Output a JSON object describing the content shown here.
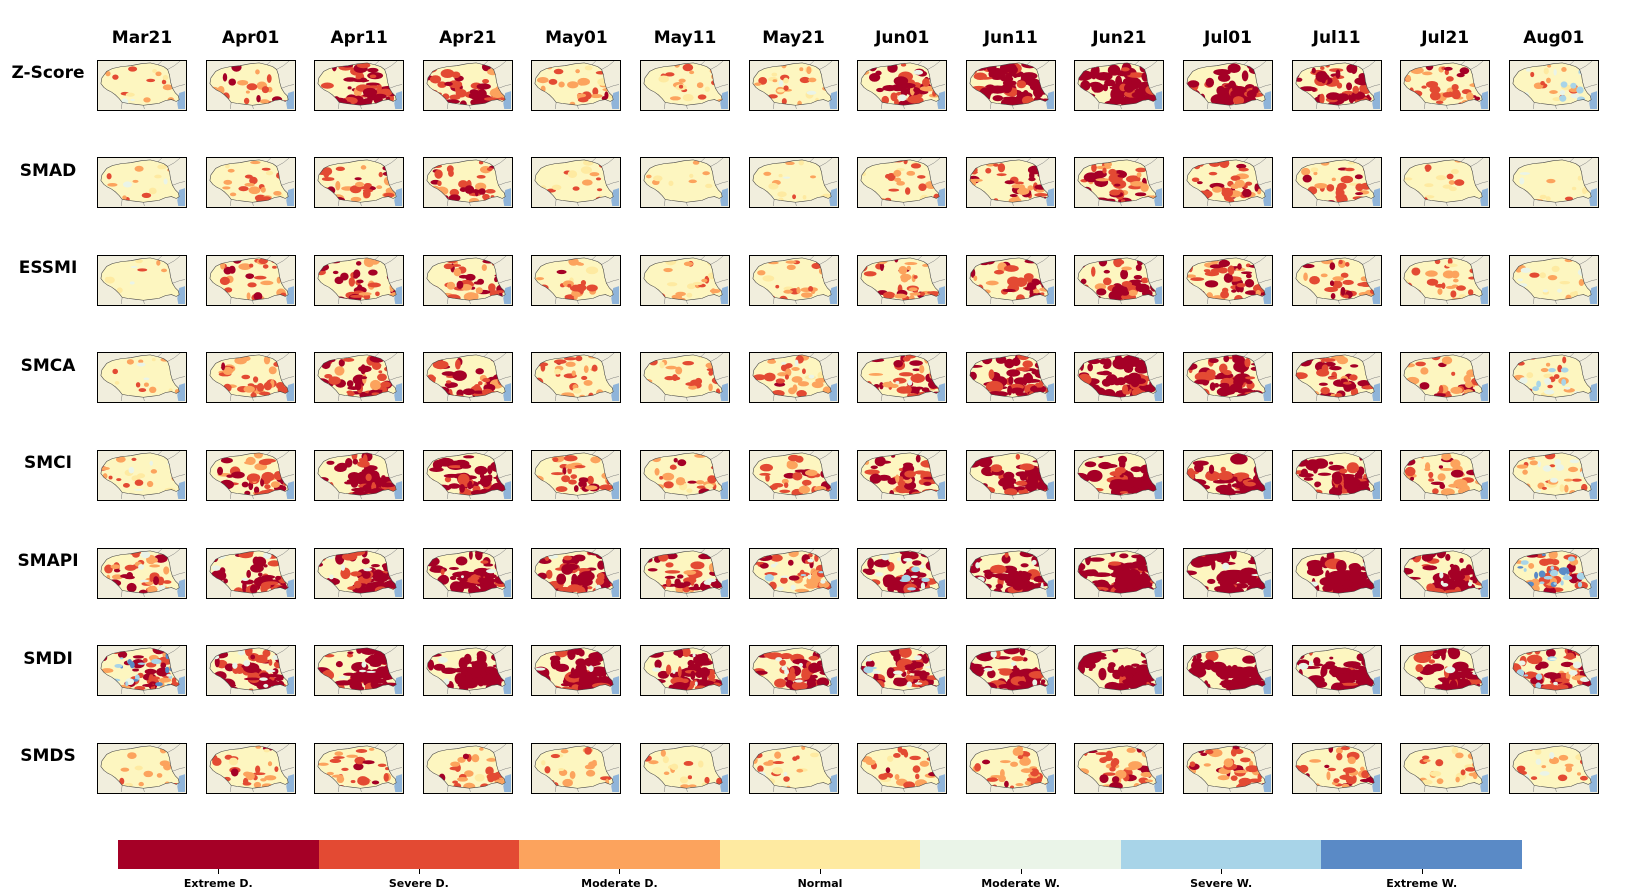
{
  "columns": [
    "Mar21",
    "Apr01",
    "Apr11",
    "Apr21",
    "May01",
    "May11",
    "May21",
    "Jun01",
    "Jun11",
    "Jun21",
    "Jul01",
    "Jul11",
    "Jul21",
    "Aug01"
  ],
  "rows": [
    "Z-Score",
    "SMAD",
    "ESSMI",
    "SMCA",
    "SMCI",
    "SMAPI",
    "SMDI",
    "SMDS"
  ],
  "legend": {
    "labels": [
      "Extreme D.",
      "Severe D.",
      "Moderate D.",
      "Normal",
      "Moderate W.",
      "Severe W.",
      "Extreme W."
    ],
    "colors": [
      "#a50026",
      "#e34a33",
      "#fca35d",
      "#feeaa1",
      "#eaf4e8",
      "#a8d4e8",
      "#5a8ac6"
    ]
  },
  "map_colors": {
    "land_outside": "#f1eedd",
    "base": "#fdf6c0",
    "sea": "#8fb4d9"
  },
  "drought_levels": [
    [
      0.05,
      0.3,
      0.6,
      0.55,
      0.25,
      0.15,
      0.2,
      0.55,
      0.75,
      0.85,
      0.75,
      0.6,
      0.35,
      0.15
    ],
    [
      0.05,
      0.2,
      0.4,
      0.4,
      0.15,
      0.05,
      0.05,
      0.25,
      0.45,
      0.5,
      0.45,
      0.3,
      0.1,
      0.05
    ],
    [
      0.05,
      0.3,
      0.4,
      0.45,
      0.25,
      0.15,
      0.2,
      0.35,
      0.5,
      0.55,
      0.5,
      0.35,
      0.25,
      0.1
    ],
    [
      0.1,
      0.35,
      0.55,
      0.55,
      0.3,
      0.25,
      0.3,
      0.5,
      0.7,
      0.75,
      0.65,
      0.5,
      0.35,
      0.2
    ],
    [
      0.1,
      0.45,
      0.7,
      0.75,
      0.35,
      0.25,
      0.3,
      0.5,
      0.7,
      0.75,
      0.7,
      0.65,
      0.4,
      0.2
    ],
    [
      0.4,
      0.6,
      0.7,
      0.75,
      0.65,
      0.5,
      0.45,
      0.65,
      0.8,
      0.85,
      0.85,
      0.85,
      0.75,
      0.45
    ],
    [
      0.45,
      0.65,
      0.8,
      0.9,
      0.8,
      0.7,
      0.6,
      0.65,
      0.8,
      0.85,
      0.85,
      0.8,
      0.75,
      0.55
    ],
    [
      0.1,
      0.25,
      0.3,
      0.3,
      0.2,
      0.15,
      0.15,
      0.25,
      0.35,
      0.4,
      0.4,
      0.35,
      0.2,
      0.1
    ]
  ],
  "wet_levels": [
    [
      0.05,
      0,
      0,
      0,
      0,
      0,
      0.05,
      0.05,
      0,
      0,
      0,
      0,
      0,
      0.3
    ],
    [
      0.05,
      0,
      0,
      0,
      0,
      0,
      0.05,
      0,
      0,
      0,
      0,
      0,
      0,
      0.1
    ],
    [
      0.05,
      0,
      0,
      0,
      0,
      0,
      0,
      0,
      0,
      0,
      0,
      0,
      0,
      0.15
    ],
    [
      0.05,
      0,
      0,
      0,
      0,
      0,
      0.1,
      0.05,
      0,
      0,
      0,
      0,
      0,
      0.3
    ],
    [
      0.1,
      0,
      0,
      0,
      0,
      0,
      0,
      0,
      0,
      0,
      0,
      0,
      0,
      0.2
    ],
    [
      0.1,
      0.1,
      0.1,
      0.05,
      0.05,
      0.05,
      0.3,
      0.3,
      0.1,
      0,
      0.05,
      0.05,
      0.1,
      0.6
    ],
    [
      0.6,
      0.2,
      0.1,
      0.05,
      0.05,
      0.1,
      0.15,
      0.3,
      0.1,
      0,
      0,
      0.05,
      0.05,
      0.3
    ],
    [
      0,
      0,
      0,
      0,
      0,
      0,
      0.05,
      0,
      0,
      0,
      0,
      0,
      0,
      0.1
    ]
  ]
}
